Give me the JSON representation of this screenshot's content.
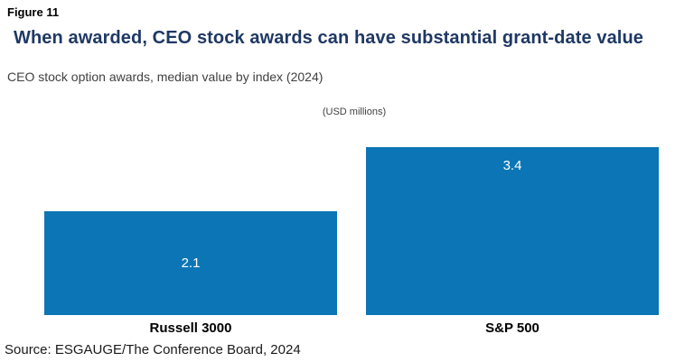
{
  "figure_label": "Figure 11",
  "title": "When awarded, CEO stock awards can have substantial grant-date value",
  "subtitle": "CEO stock option awards, median value by index (2024)",
  "units_note": "(USD millions)",
  "source": "Source: ESGAUGE/The Conference Board, 2024",
  "colors": {
    "bar": "#0c75b6",
    "title_text": "#1f3864",
    "body_text": "#404040",
    "value_label": "#ffffff"
  },
  "chart_data": {
    "type": "bar",
    "categories": [
      "Russell 3000",
      "S&P 500"
    ],
    "values": [
      2.1,
      3.4
    ],
    "title": "When awarded, CEO stock awards can have substantial grant-date value",
    "subtitle": "CEO stock option awards, median value by index (2024)",
    "xlabel": "",
    "ylabel": "(USD millions)",
    "ylim": [
      0,
      3.4
    ],
    "grid": false,
    "legend": false,
    "axis_lines": false,
    "value_label_positions": [
      "center",
      "inside-top"
    ],
    "bar_color": "#0c75b6"
  }
}
